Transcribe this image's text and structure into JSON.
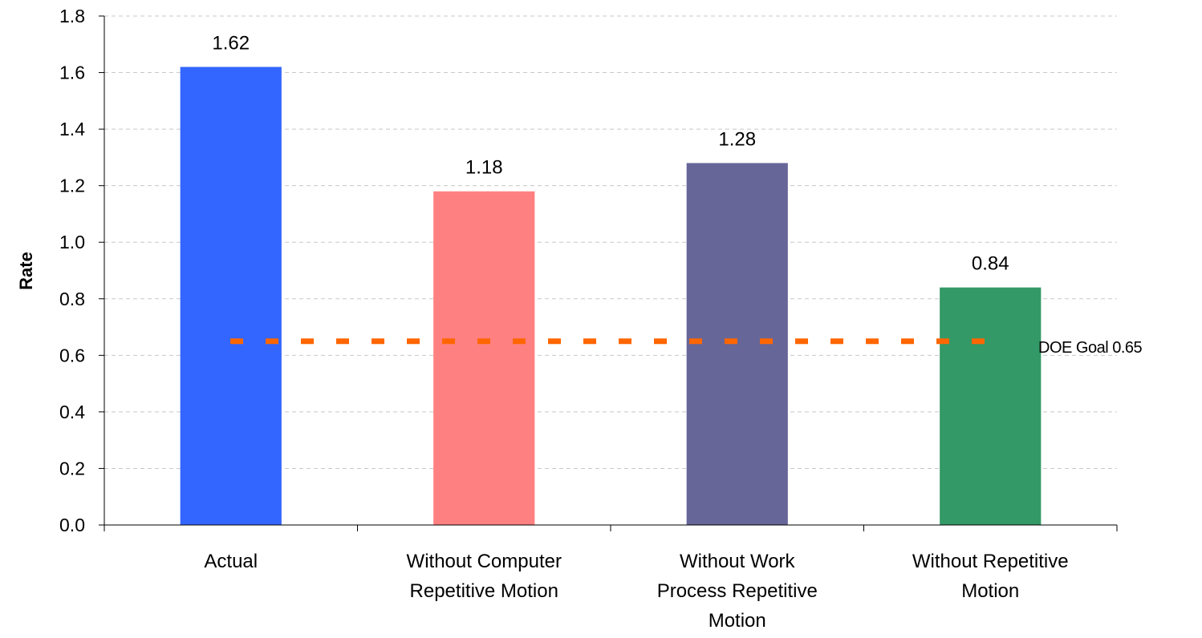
{
  "chart_data": {
    "type": "bar",
    "categories": [
      "Actual",
      "Without Computer Repetitive Motion",
      "Without Work Process Repetitive Motion",
      "Without Repetitive Motion"
    ],
    "category_lines": [
      [
        "Actual"
      ],
      [
        "Without Computer",
        "Repetitive Motion"
      ],
      [
        "Without Work",
        "Process Repetitive",
        "Motion"
      ],
      [
        "Without Repetitive",
        "Motion"
      ]
    ],
    "values": [
      1.62,
      1.18,
      1.28,
      0.84
    ],
    "data_labels": [
      "1.62",
      "1.18",
      "1.28",
      "0.84"
    ],
    "colors": [
      "#3366FF",
      "#FF8080",
      "#666699",
      "#339966"
    ],
    "title": "",
    "xlabel": "",
    "ylabel": "Rate",
    "ylim": [
      0,
      1.8
    ],
    "yticks": [
      "0.0",
      "0.2",
      "0.4",
      "0.6",
      "0.8",
      "1.0",
      "1.2",
      "1.4",
      "1.6",
      "1.8"
    ],
    "grid": true,
    "reference_line": {
      "value": 0.65,
      "label": "DOE Goal 0.65",
      "color": "#FF6600",
      "style": "dashed"
    }
  }
}
